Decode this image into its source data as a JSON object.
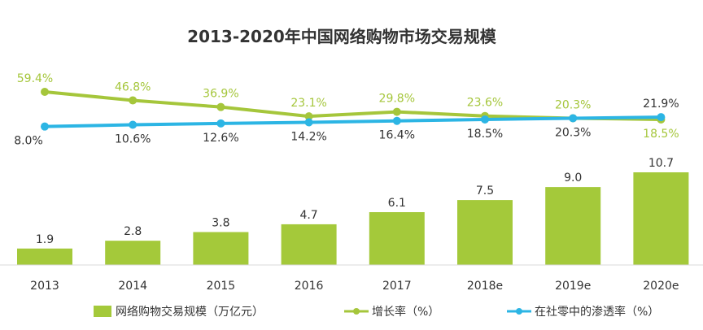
{
  "chart_data": {
    "type": "bar+line",
    "title": "2013-2020年中国网络购物市场交易规模",
    "categories": [
      "2013",
      "2014",
      "2015",
      "2016",
      "2017",
      "2018e",
      "2019e",
      "2020e"
    ],
    "series": [
      {
        "name": "网络购物交易规模（万亿元）",
        "type": "bar",
        "color": "#a4c93a",
        "values": [
          1.9,
          2.8,
          3.8,
          4.7,
          6.1,
          7.5,
          9.0,
          10.7
        ]
      },
      {
        "name": "增长率（%）",
        "type": "line",
        "color": "#a5c63b",
        "values": [
          59.4,
          46.8,
          36.9,
          23.1,
          29.8,
          23.6,
          20.3,
          18.5
        ]
      },
      {
        "name": "在社零中的渗透率（%）",
        "type": "line",
        "color": "#2cb5e4",
        "values": [
          8.0,
          10.6,
          12.6,
          14.2,
          16.4,
          18.5,
          20.3,
          21.9
        ]
      }
    ],
    "bar_ylim": [
      0,
      10.7
    ],
    "line_ylim": [
      0,
      65
    ],
    "grid": false,
    "legend_position": "bottom"
  }
}
